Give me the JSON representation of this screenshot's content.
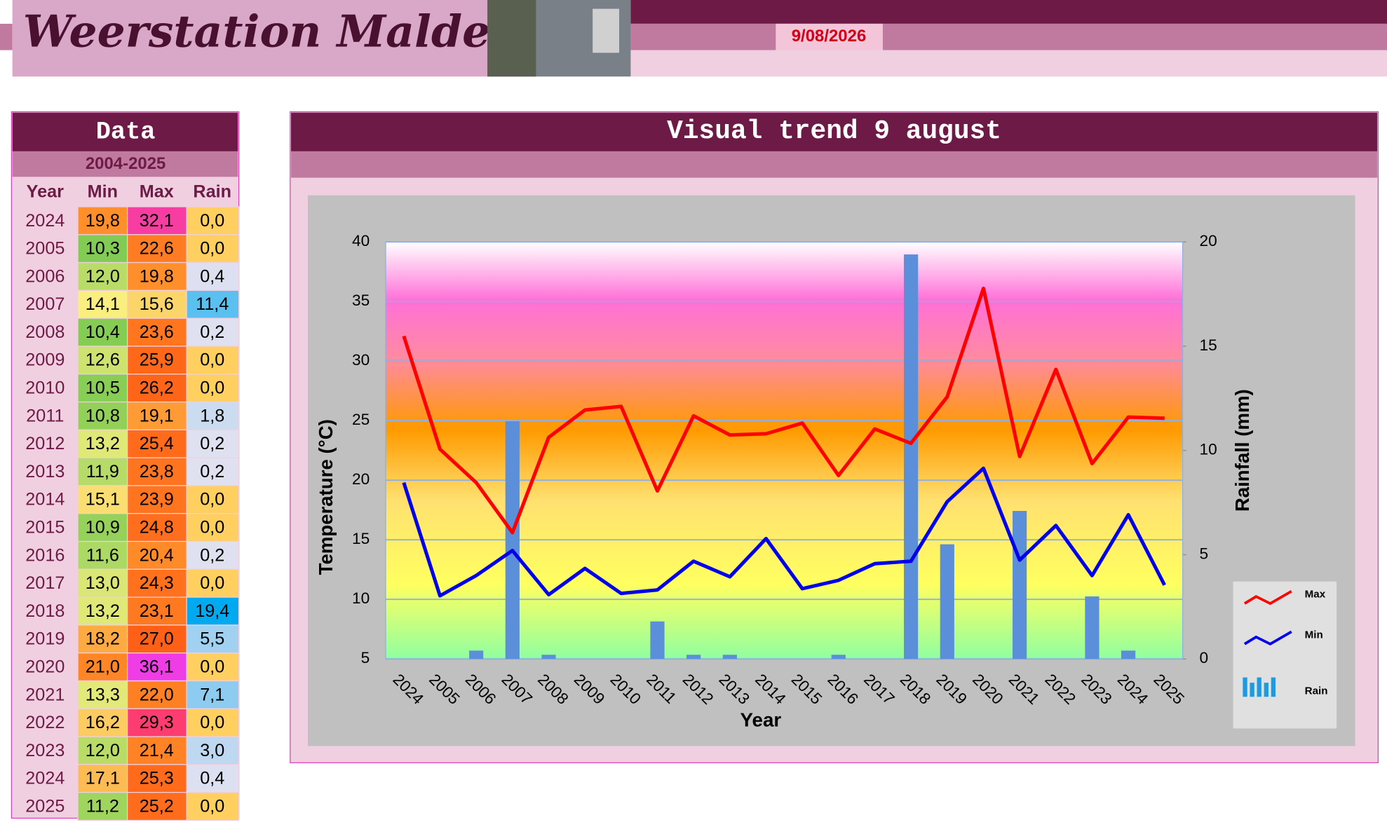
{
  "header": {
    "title": "Weerstation Malderen",
    "date": "9/08/2026"
  },
  "table": {
    "title": "Data",
    "period": "2004-2025",
    "columns": [
      "Year",
      "Min",
      "Max",
      "Rain"
    ],
    "rows": [
      [
        "2024",
        "19,8",
        "32,1",
        "0,0"
      ],
      [
        "2005",
        "10,3",
        "22,6",
        "0,0"
      ],
      [
        "2006",
        "12,0",
        "19,8",
        "0,4"
      ],
      [
        "2007",
        "14,1",
        "15,6",
        "11,4"
      ],
      [
        "2008",
        "10,4",
        "23,6",
        "0,2"
      ],
      [
        "2009",
        "12,6",
        "25,9",
        "0,0"
      ],
      [
        "2010",
        "10,5",
        "26,2",
        "0,0"
      ],
      [
        "2011",
        "10,8",
        "19,1",
        "1,8"
      ],
      [
        "2012",
        "13,2",
        "25,4",
        "0,2"
      ],
      [
        "2013",
        "11,9",
        "23,8",
        "0,2"
      ],
      [
        "2014",
        "15,1",
        "23,9",
        "0,0"
      ],
      [
        "2015",
        "10,9",
        "24,8",
        "0,0"
      ],
      [
        "2016",
        "11,6",
        "20,4",
        "0,2"
      ],
      [
        "2017",
        "13,0",
        "24,3",
        "0,0"
      ],
      [
        "2018",
        "13,2",
        "23,1",
        "19,4"
      ],
      [
        "2019",
        "18,2",
        "27,0",
        "5,5"
      ],
      [
        "2020",
        "21,0",
        "36,1",
        "0,0"
      ],
      [
        "2021",
        "13,3",
        "22,0",
        "7,1"
      ],
      [
        "2022",
        "16,2",
        "29,3",
        "0,0"
      ],
      [
        "2023",
        "12,0",
        "21,4",
        "3,0"
      ],
      [
        "2024",
        "17,1",
        "25,3",
        "0,4"
      ],
      [
        "2025",
        "11,2",
        "25,2",
        "0,0"
      ]
    ]
  },
  "chart_data": {
    "type": "line-bar",
    "title": "Visual trend 9 august",
    "x_label": "Year",
    "y_label": "Temperature (°C)",
    "y2_label": "Rainfall (mm)",
    "categories": [
      "2024",
      "2005",
      "2006",
      "2007",
      "2008",
      "2009",
      "2010",
      "2011",
      "2012",
      "2013",
      "2014",
      "2015",
      "2016",
      "2017",
      "2018",
      "2019",
      "2020",
      "2021",
      "2022",
      "2023",
      "2024",
      "2025"
    ],
    "series": [
      {
        "name": "Max",
        "color": "#ff0000",
        "type": "line",
        "values": [
          32.1,
          22.6,
          19.8,
          15.6,
          23.6,
          25.9,
          26.2,
          19.1,
          25.4,
          23.8,
          23.9,
          24.8,
          20.4,
          24.3,
          23.1,
          27.0,
          36.1,
          22.0,
          29.3,
          21.4,
          25.3,
          25.2
        ]
      },
      {
        "name": "Min",
        "color": "#0000ee",
        "type": "line",
        "values": [
          19.8,
          10.3,
          12.0,
          14.1,
          10.4,
          12.6,
          10.5,
          10.8,
          13.2,
          11.9,
          15.1,
          10.9,
          11.6,
          13.0,
          13.2,
          18.2,
          21.0,
          13.3,
          16.2,
          12.0,
          17.1,
          11.2
        ]
      },
      {
        "name": "Rain",
        "color": "#5b8fd9",
        "type": "bar",
        "axis": "y2",
        "values": [
          0.0,
          0.0,
          0.4,
          11.4,
          0.2,
          0.0,
          0.0,
          1.8,
          0.2,
          0.2,
          0.0,
          0.0,
          0.2,
          0.0,
          19.4,
          5.5,
          0.0,
          7.1,
          0.0,
          3.0,
          0.4,
          0.0
        ]
      }
    ],
    "ylim": [
      5,
      40
    ],
    "yticks": [
      5,
      10,
      15,
      20,
      25,
      30,
      35,
      40
    ],
    "y2lim": [
      0,
      20
    ],
    "y2ticks": [
      0,
      5,
      10,
      15,
      20
    ],
    "grid": true,
    "legend": "right"
  }
}
